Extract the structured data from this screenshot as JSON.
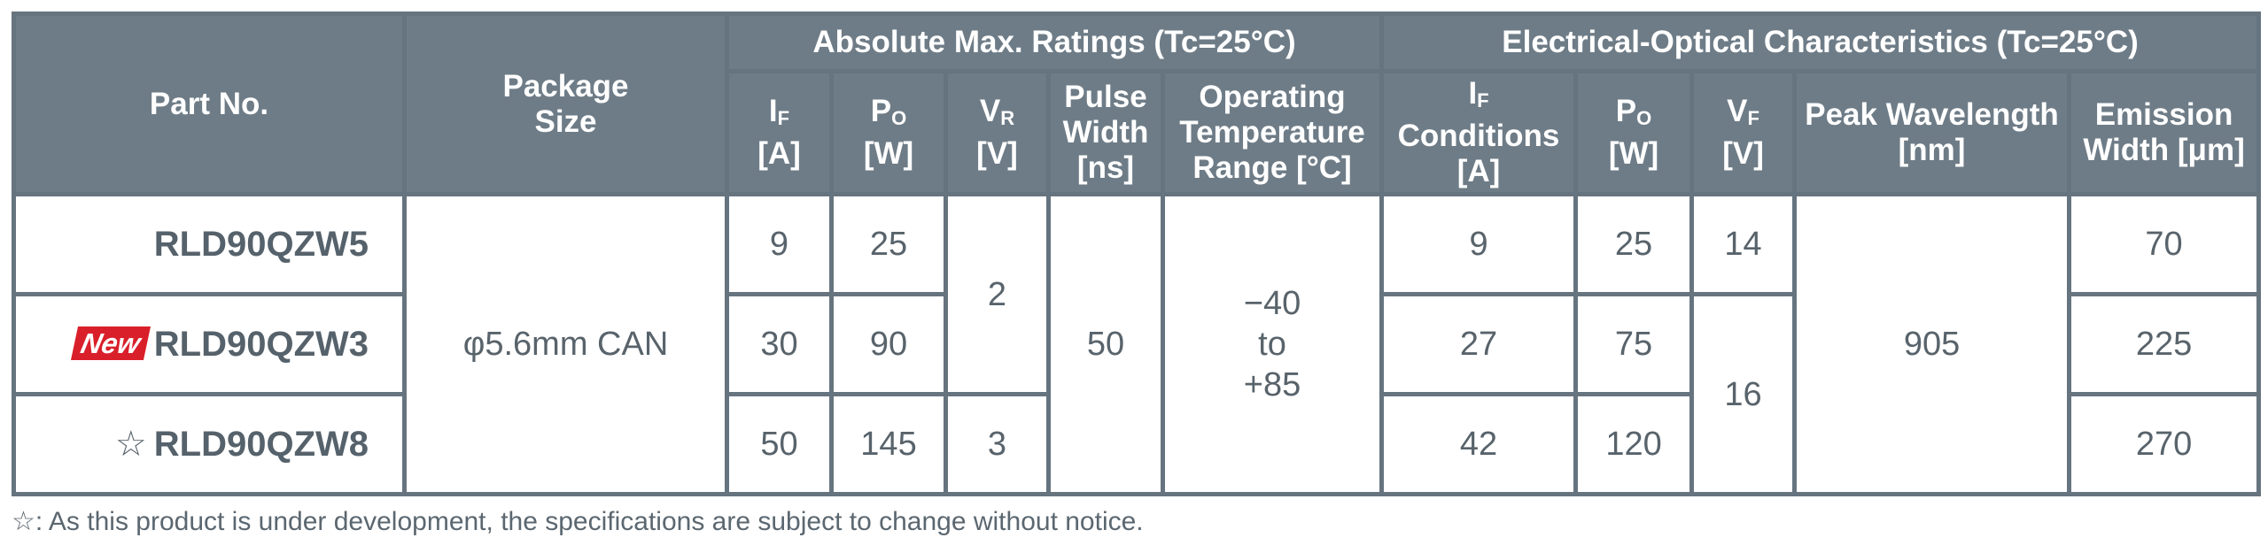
{
  "table": {
    "header": {
      "part_no": "Part No.",
      "package_size": "Package\nSize",
      "groups": [
        "Absolute Max. Ratings (Tc=25°C)",
        "Electrical-Optical Characteristics (Tc=25°C)"
      ],
      "columns": [
        {
          "symbol": "I",
          "sub": "F",
          "unit": "[A]"
        },
        {
          "symbol": "P",
          "sub": "O",
          "unit": "[W]"
        },
        {
          "symbol": "V",
          "sub": "R",
          "unit": "[V]"
        },
        {
          "text": "Pulse\nWidth\n[ns]"
        },
        {
          "text": "Operating\nTemperature\nRange [°C]"
        },
        {
          "symbol": "I",
          "sub": "F",
          "unit": "Conditions\n[A]"
        },
        {
          "symbol": "P",
          "sub": "O",
          "unit": "[W]"
        },
        {
          "symbol": "V",
          "sub": "F",
          "unit": "[V]"
        },
        {
          "text": "Peak Wavelength\n[nm]"
        },
        {
          "text": "Emission\nWidth [μm]"
        }
      ]
    },
    "rows": [
      {
        "part": "RLD90QZW5",
        "package": "φ5.6mm CAN",
        "if_max": 9,
        "po_max": 25,
        "vr": 2,
        "pulse": 50,
        "temp": "−40\nto\n+85",
        "if_cond": 9,
        "po": 25,
        "vf": 14,
        "peak": 905,
        "emission": 70
      },
      {
        "badge": "New",
        "part": "RLD90QZW3",
        "if_max": 30,
        "po_max": 90,
        "if_cond": 27,
        "po": 75,
        "vf": 16,
        "emission": 225
      },
      {
        "mark": "☆",
        "part": "RLD90QZW8",
        "if_max": 50,
        "po_max": 145,
        "vr": 3,
        "if_cond": 42,
        "po": 120,
        "emission": 270
      }
    ],
    "footnote": "☆: As this product is under development, the specifications are subject to change without notice."
  }
}
